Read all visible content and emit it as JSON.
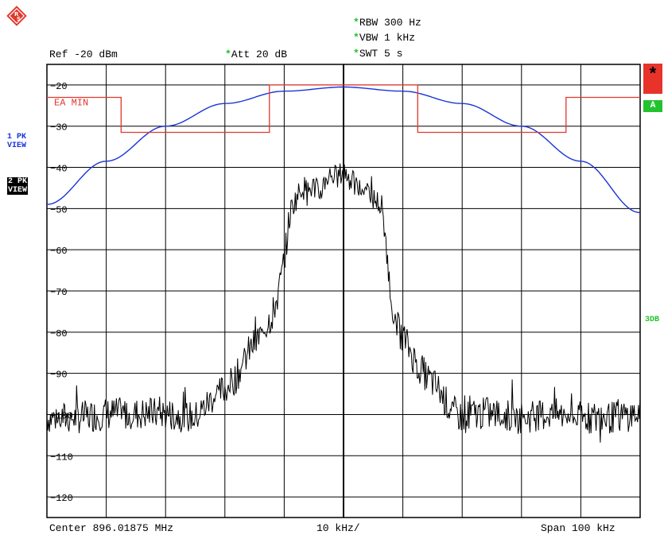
{
  "header": {
    "rbw": "RBW 300 Hz",
    "vbw": "VBW 1 kHz",
    "swt": "SWT 5 s",
    "ref": "Ref -20 dBm",
    "att": "Att  20 dB",
    "star": "*"
  },
  "side": {
    "trace1_line1": "1 PK",
    "trace1_line2": "VIEW",
    "trace2_line1": "2 PK",
    "trace2_line2": "VIEW",
    "right_star": "*",
    "right_a": "A",
    "right_3db": "3DB"
  },
  "limit_label": "EA MIN",
  "colors": {
    "trace1": "#1a35d6",
    "limit": "#e2372c",
    "trace2": "#000000",
    "status_green": "#22c32e",
    "status_red": "#e8332a",
    "logo": "#e2372c"
  },
  "chart_data": {
    "type": "line",
    "title": "",
    "xlabel_left": "Center 896.01875 MHz",
    "xlabel_mid": "10 kHz/",
    "xlabel_right": "Span 100 kHz",
    "x_unit": "kHz offset from center",
    "xlim": [
      -50,
      50
    ],
    "ylim": [
      -125,
      -15
    ],
    "y_ticks": [
      -20,
      -30,
      -40,
      -50,
      -60,
      -70,
      -80,
      -90,
      -100,
      -110,
      -120
    ],
    "y_tick_labels": [
      "-20",
      "-30",
      "-40",
      "-50",
      "-60",
      "-70",
      "-80",
      "-90",
      "-100",
      "-110",
      "-120"
    ],
    "grid": true,
    "series": [
      {
        "name": "1 PK VIEW",
        "style": "smooth",
        "x": [
          -50,
          -40,
          -30,
          -20,
          -10,
          0,
          10,
          20,
          30,
          40,
          50
        ],
        "y": [
          -49,
          -38.5,
          -30,
          -24.5,
          -21.5,
          -20.5,
          -21.5,
          -24.5,
          -30,
          -38.5,
          -51
        ]
      },
      {
        "name": "EA MIN",
        "style": "step",
        "x": [
          -50,
          -37.5,
          -37.5,
          -12.5,
          -12.5,
          12.5,
          12.5,
          37.5,
          37.5,
          50
        ],
        "y": [
          -23,
          -23,
          -31.5,
          -31.5,
          -20,
          -20,
          -31.5,
          -31.5,
          -23,
          -23
        ]
      },
      {
        "name": "2 PK VIEW",
        "style": "noisy",
        "x": [
          -50,
          -45,
          -40,
          -35,
          -30,
          -25,
          -22,
          -20,
          -18,
          -16,
          -14,
          -12,
          -11,
          -10,
          -9,
          -8,
          -7,
          -6,
          -5,
          -4,
          -3,
          -2,
          -1,
          0,
          1,
          2,
          3,
          4,
          5,
          6,
          7,
          8,
          9,
          10,
          11,
          12,
          13,
          14,
          16,
          18,
          20,
          22,
          25,
          30,
          35,
          40,
          45,
          50
        ],
        "y": [
          -100,
          -100,
          -99,
          -99,
          -99,
          -100,
          -95,
          -93,
          -90,
          -84,
          -80,
          -75,
          -70,
          -62,
          -50,
          -47,
          -44,
          -45,
          -44,
          -46,
          -42,
          -41,
          -42,
          -40,
          -42,
          -44,
          -45,
          -44,
          -47,
          -48,
          -55,
          -72,
          -78,
          -80,
          -83,
          -86,
          -88,
          -90,
          -93,
          -98,
          -100,
          -99,
          -99,
          -100,
          -99,
          -100,
          -100,
          -99
        ]
      }
    ]
  }
}
